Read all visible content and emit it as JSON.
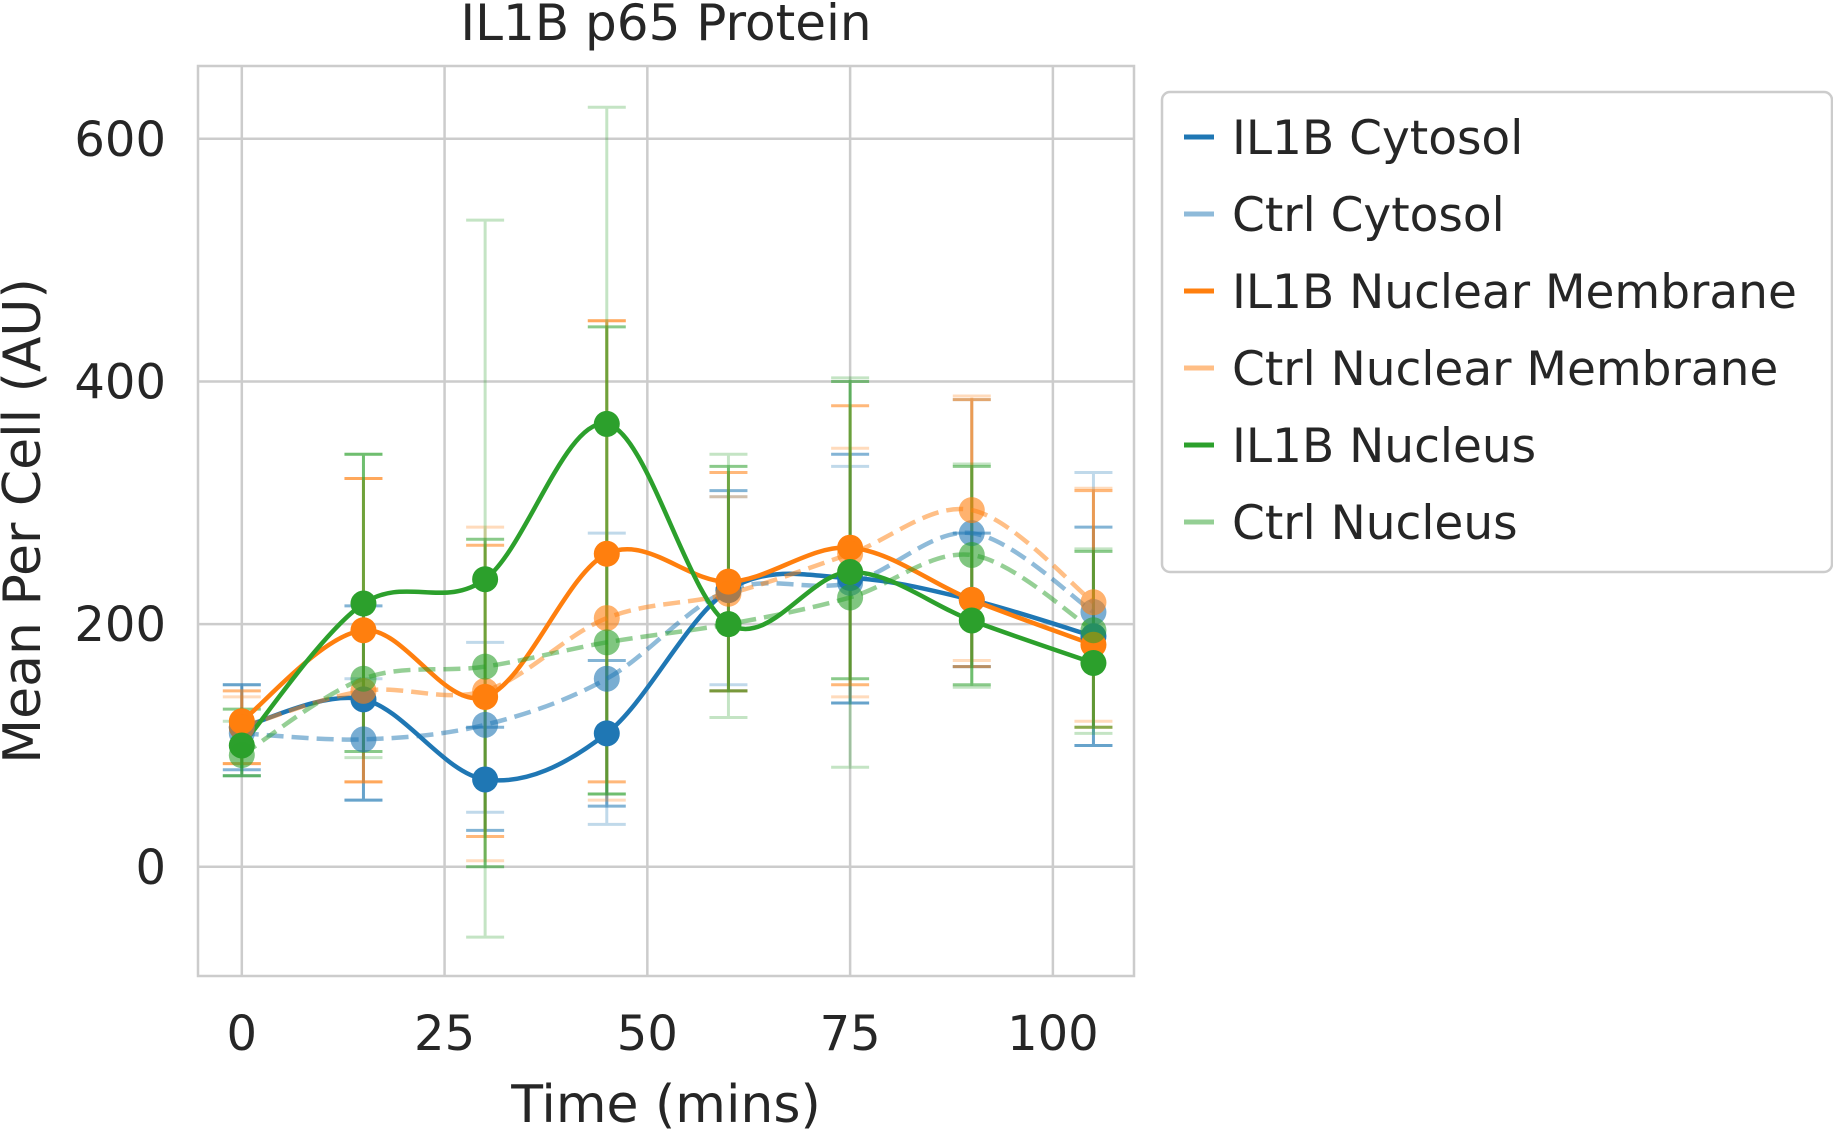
{
  "chart_data": {
    "type": "line",
    "title": "IL1B p65 Protein",
    "xlabel": "Time (mins)",
    "ylabel": "Mean Per Cell (AU)",
    "x": [
      0,
      15,
      30,
      45,
      60,
      75,
      90,
      105
    ],
    "xticks": [
      0,
      25,
      50,
      75,
      100
    ],
    "yticks": [
      0,
      200,
      400,
      600
    ],
    "xlim": [
      -5.4,
      110
    ],
    "ylim": [
      -90,
      660
    ],
    "grid": true,
    "legend_position": "outside-right",
    "series": [
      {
        "name": "IL1B Cytosol",
        "color": "#1f77b4",
        "style": "solid",
        "alpha": 1,
        "values": [
          115,
          138,
          72,
          110,
          228,
          238,
          220,
          190
        ],
        "err_low": [
          80,
          55,
          30,
          50,
          145,
          135,
          165,
          100
        ],
        "err_high": [
          150,
          215,
          115,
          170,
          310,
          340,
          275,
          280
        ]
      },
      {
        "name": "Ctrl Cytosol",
        "color": "#1f77b4",
        "style": "dashed",
        "alpha": 0.5,
        "values": [
          110,
          105,
          117,
          155,
          228,
          234,
          275,
          210
        ],
        "err_low": [
          75,
          55,
          45,
          35,
          150,
          135,
          165,
          100
        ],
        "err_high": [
          150,
          155,
          185,
          275,
          305,
          330,
          385,
          325
        ]
      },
      {
        "name": "IL1B Nuclear Membrane",
        "color": "#ff7f0e",
        "style": "solid",
        "alpha": 1,
        "values": [
          120,
          195,
          140,
          258,
          235,
          263,
          220,
          183
        ],
        "err_low": [
          85,
          70,
          25,
          70,
          145,
          150,
          165,
          115
        ],
        "err_high": [
          145,
          320,
          265,
          450,
          325,
          380,
          385,
          310
        ]
      },
      {
        "name": "Ctrl Nuclear Membrane",
        "color": "#ff7f0e",
        "style": "dashed",
        "alpha": 0.5,
        "values": [
          115,
          145,
          145,
          205,
          225,
          258,
          294,
          218
        ],
        "err_low": [
          85,
          70,
          5,
          55,
          145,
          140,
          170,
          120
        ],
        "err_high": [
          140,
          320,
          280,
          450,
          305,
          345,
          388,
          312
        ]
      },
      {
        "name": "IL1B Nucleus",
        "color": "#2ca02c",
        "style": "solid",
        "alpha": 1,
        "values": [
          100,
          217,
          237,
          365,
          200,
          243,
          203,
          168
        ],
        "err_low": [
          75,
          95,
          0,
          60,
          145,
          155,
          150,
          115
        ],
        "err_high": [
          130,
          340,
          270,
          445,
          330,
          400,
          330,
          260
        ]
      },
      {
        "name": "Ctrl Nucleus",
        "color": "#2ca02c",
        "style": "dashed",
        "alpha": 0.5,
        "values": [
          92,
          155,
          165,
          185,
          200,
          222,
          257,
          195
        ],
        "err_low": [
          75,
          90,
          -58,
          60,
          123,
          82,
          148,
          110
        ],
        "err_high": [
          120,
          340,
          533,
          626,
          340,
          403,
          332,
          262
        ]
      }
    ]
  }
}
